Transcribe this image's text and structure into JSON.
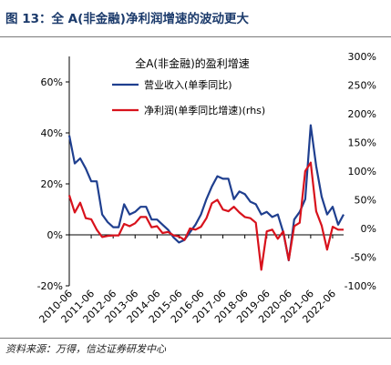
{
  "figure": {
    "title": "图 13：全 A(非金融)净利润增速的波动更大",
    "source": "资料来源：万得，信达证券研发中心"
  },
  "colors": {
    "revenue": "#1f3f8f",
    "profit": "#d8121c",
    "title": "#1b3a6b",
    "axis": "#000000"
  },
  "chart_data": {
    "type": "line",
    "title": "全A(非金融)的盈利增速",
    "x_tick_labels": [
      "2010-06",
      "2011-06",
      "2012-06",
      "2013-06",
      "2014-06",
      "2015-06",
      "2016-06",
      "2017-06",
      "2018-06",
      "2019-06",
      "2020-06",
      "2021-06",
      "2022-06"
    ],
    "y_left": {
      "ticks": [
        "-20%",
        "0%",
        "20%",
        "40%",
        "60%"
      ],
      "range": [
        -20,
        70
      ],
      "unit": "%"
    },
    "y_right": {
      "ticks": [
        "-100%",
        "-50%",
        "0%",
        "50%",
        "100%",
        "150%",
        "200%",
        "250%",
        "300%"
      ],
      "range": [
        -100,
        300
      ],
      "unit": "%"
    },
    "x_range": [
      "2010-06",
      "2022-12"
    ],
    "legend": {
      "placement": "top-left"
    },
    "series": [
      {
        "name": "营业收入(单季同比)",
        "axis": "left",
        "x": [
          "2010-06",
          "2010-09",
          "2010-12",
          "2011-03",
          "2011-06",
          "2011-09",
          "2011-12",
          "2012-03",
          "2012-06",
          "2012-09",
          "2012-12",
          "2013-03",
          "2013-06",
          "2013-09",
          "2013-12",
          "2014-03",
          "2014-06",
          "2014-09",
          "2014-12",
          "2015-03",
          "2015-06",
          "2015-09",
          "2015-12",
          "2016-03",
          "2016-06",
          "2016-09",
          "2016-12",
          "2017-03",
          "2017-06",
          "2017-09",
          "2017-12",
          "2018-03",
          "2018-06",
          "2018-09",
          "2018-12",
          "2019-03",
          "2019-06",
          "2019-09",
          "2019-12",
          "2020-03",
          "2020-06",
          "2020-09",
          "2020-12",
          "2021-03",
          "2021-06",
          "2021-09",
          "2021-12",
          "2022-03",
          "2022-06",
          "2022-09",
          "2022-12"
        ],
        "values": [
          39,
          28,
          30,
          26,
          21,
          21,
          8,
          5,
          3,
          3,
          12,
          8,
          9,
          11,
          11,
          6,
          6,
          4,
          2,
          -1,
          -3,
          -2,
          1,
          4,
          8,
          14,
          19,
          23,
          22,
          22,
          14,
          17,
          16,
          13,
          12,
          8,
          9,
          7,
          8,
          1,
          -10,
          6,
          9,
          14,
          43,
          27,
          15,
          8,
          11,
          4,
          8
        ]
      },
      {
        "name": "净利润(单季同比增速)(rhs)",
        "axis": "right",
        "x": [
          "2010-06",
          "2010-09",
          "2010-12",
          "2011-03",
          "2011-06",
          "2011-09",
          "2011-12",
          "2012-03",
          "2012-06",
          "2012-09",
          "2012-12",
          "2013-03",
          "2013-06",
          "2013-09",
          "2013-12",
          "2014-03",
          "2014-06",
          "2014-09",
          "2014-12",
          "2015-03",
          "2015-06",
          "2015-09",
          "2015-12",
          "2016-03",
          "2016-06",
          "2016-09",
          "2016-12",
          "2017-03",
          "2017-06",
          "2017-09",
          "2017-12",
          "2018-03",
          "2018-06",
          "2018-09",
          "2018-12",
          "2019-03",
          "2019-06",
          "2019-09",
          "2019-12",
          "2020-03",
          "2020-06",
          "2020-09",
          "2020-12",
          "2021-03",
          "2021-06",
          "2021-09",
          "2021-12",
          "2022-03",
          "2022-06",
          "2022-09",
          "2022-12"
        ],
        "values": [
          58,
          28,
          45,
          18,
          16,
          -2,
          -15,
          -13,
          -12,
          -12,
          8,
          4,
          9,
          20,
          20,
          2,
          4,
          -8,
          -6,
          -12,
          -14,
          -20,
          0,
          -2,
          3,
          18,
          44,
          50,
          33,
          30,
          38,
          28,
          20,
          18,
          10,
          -72,
          -5,
          -2,
          -18,
          -5,
          -55,
          4,
          10,
          100,
          115,
          30,
          5,
          -37,
          3,
          -2,
          -2
        ]
      }
    ]
  }
}
